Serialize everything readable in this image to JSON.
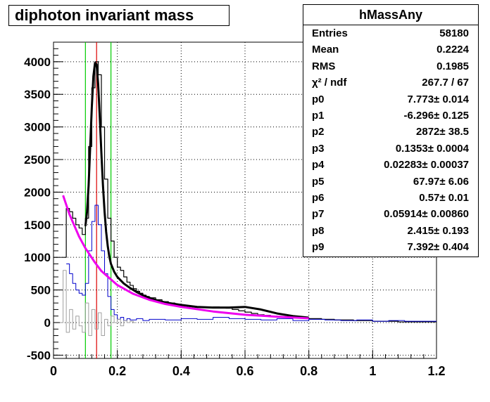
{
  "title": "diphoton invariant mass",
  "stats": {
    "name": "hMassAny",
    "rows": [
      {
        "label": "Entries",
        "value": "58180"
      },
      {
        "label": "Mean",
        "value": "0.2224"
      },
      {
        "label": "RMS",
        "value": "0.1985"
      },
      {
        "label": "χ² / ndf",
        "value": "267.7 / 67"
      },
      {
        "label": "p0",
        "value": "7.773± 0.014"
      },
      {
        "label": "p1",
        "value": "-6.296± 0.125"
      },
      {
        "label": "p2",
        "value": "2872± 38.5"
      },
      {
        "label": "p3",
        "value": "0.1353± 0.0004"
      },
      {
        "label": "p4",
        "value": "0.02283± 0.00037"
      },
      {
        "label": "p5",
        "value": "67.97± 6.06"
      },
      {
        "label": "p6",
        "value": "0.57± 0.01"
      },
      {
        "label": "p7",
        "value": "0.05914± 0.00860"
      },
      {
        "label": "p8",
        "value": "2.415± 0.193"
      },
      {
        "label": "p9",
        "value": "7.392± 0.404"
      }
    ]
  },
  "chart_data": {
    "type": "line",
    "title": "diphoton invariant mass",
    "xlabel": "",
    "ylabel": "",
    "xlim": [
      0,
      1.2
    ],
    "ylim": [
      -550,
      4300
    ],
    "xticks": [
      0,
      0.2,
      0.4,
      0.6,
      0.8,
      1,
      1.2
    ],
    "xtick_labels": [
      "0",
      "0.2",
      "0.4",
      "0.6",
      "0.8",
      "1",
      "1.2"
    ],
    "yticks": [
      -500,
      0,
      500,
      1000,
      1500,
      2000,
      2500,
      3000,
      3500,
      4000
    ],
    "ytick_labels": [
      "-500",
      "0",
      "500",
      "1000",
      "1500",
      "2000",
      "2500",
      "3000",
      "3500",
      "4000"
    ],
    "grid": true,
    "vertical_lines": [
      {
        "x": 0.1,
        "color": "#00cc00"
      },
      {
        "x": 0.135,
        "color": "#dd0000"
      },
      {
        "x": 0.18,
        "color": "#00cc00"
      }
    ],
    "series": [
      {
        "style": "step",
        "color": "#000000",
        "width": 1.2,
        "x": [
          0.03,
          0.04,
          0.05,
          0.06,
          0.07,
          0.08,
          0.09,
          0.1,
          0.11,
          0.12,
          0.13,
          0.14,
          0.15,
          0.16,
          0.17,
          0.18,
          0.19,
          0.2,
          0.21,
          0.22,
          0.23,
          0.24,
          0.25,
          0.26,
          0.27,
          0.28,
          0.29,
          0.3,
          0.32,
          0.34,
          0.36,
          0.38,
          0.4,
          0.42,
          0.44,
          0.46,
          0.48,
          0.5,
          0.52,
          0.54,
          0.56,
          0.58,
          0.6,
          0.62,
          0.64,
          0.66,
          0.68,
          0.7,
          0.72,
          0.74,
          0.76,
          0.78,
          0.8,
          0.82,
          0.84,
          0.86,
          0.88,
          0.9,
          0.92,
          0.94,
          0.96,
          0.98,
          1.0,
          1.02,
          1.04,
          1.06,
          1.08,
          1.1,
          1.12,
          1.14,
          1.16,
          1.18,
          1.2
        ],
        "y": [
          1000,
          1750,
          1700,
          1600,
          1500,
          1450,
          1350,
          1600,
          2700,
          3600,
          4000,
          3800,
          3000,
          2200,
          1600,
          1250,
          1000,
          850,
          800,
          700,
          620,
          570,
          520,
          480,
          450,
          420,
          400,
          380,
          350,
          320,
          300,
          280,
          260,
          250,
          240,
          230,
          230,
          240,
          230,
          220,
          200,
          180,
          160,
          140,
          120,
          110,
          100,
          90,
          80,
          80,
          70,
          70,
          60,
          60,
          50,
          50,
          40,
          40,
          40,
          30,
          30,
          30,
          20,
          20,
          20,
          20,
          10,
          10,
          10,
          10,
          10,
          10,
          0
        ]
      },
      {
        "style": "step",
        "color": "#0000cc",
        "width": 1,
        "x": [
          0.04,
          0.05,
          0.06,
          0.07,
          0.08,
          0.09,
          0.1,
          0.11,
          0.12,
          0.13,
          0.14,
          0.15,
          0.16,
          0.17,
          0.18,
          0.19,
          0.2,
          0.21,
          0.22,
          0.23,
          0.24,
          0.26,
          0.28,
          0.3,
          0.35,
          0.4,
          0.45,
          0.5,
          0.55,
          0.6,
          0.65,
          0.7,
          0.75,
          0.8,
          0.85,
          0.9,
          0.95,
          1.0,
          1.05,
          1.1,
          1.15,
          1.2
        ],
        "y": [
          900,
          750,
          600,
          500,
          450,
          420,
          600,
          1100,
          1550,
          1800,
          1500,
          1100,
          750,
          400,
          200,
          120,
          50,
          80,
          30,
          60,
          40,
          60,
          30,
          50,
          40,
          60,
          50,
          80,
          60,
          50,
          40,
          60,
          30,
          50,
          40,
          30,
          40,
          20,
          30,
          20,
          20,
          0
        ]
      },
      {
        "style": "step",
        "color": "#a0a0a0",
        "width": 1,
        "x": [
          0.02,
          0.03,
          0.04,
          0.05,
          0.06,
          0.07,
          0.08,
          0.09,
          0.1,
          0.11,
          0.12,
          0.13,
          0.14,
          0.15,
          0.16,
          0.17,
          0.18,
          0.19,
          0.2,
          0.21,
          0.22,
          0.23,
          0.24,
          0.25,
          0.26
        ],
        "y": [
          0,
          800,
          -150,
          200,
          -100,
          100,
          -50,
          -150,
          300,
          -200,
          200,
          -100,
          150,
          -200,
          50,
          -50,
          100,
          0,
          50,
          -50,
          30,
          0,
          20,
          0,
          0
        ]
      },
      {
        "style": "line",
        "color": "#000000",
        "width": 3,
        "x": [
          0.1,
          0.105,
          0.11,
          0.115,
          0.12,
          0.125,
          0.13,
          0.135,
          0.14,
          0.145,
          0.15,
          0.155,
          0.16,
          0.165,
          0.17,
          0.175,
          0.18,
          0.19,
          0.2,
          0.22,
          0.24,
          0.26,
          0.28,
          0.3,
          0.33,
          0.36,
          0.4,
          0.45,
          0.5,
          0.55,
          0.6,
          0.65,
          0.7,
          0.75,
          0.8
        ],
        "y": [
          1480,
          1700,
          2100,
          2700,
          3300,
          3780,
          3980,
          3960,
          3650,
          3150,
          2600,
          2100,
          1700,
          1390,
          1170,
          1010,
          900,
          780,
          700,
          600,
          530,
          470,
          420,
          380,
          330,
          300,
          270,
          240,
          230,
          230,
          240,
          200,
          140,
          100,
          75
        ]
      },
      {
        "style": "line",
        "color": "#ee00ee",
        "width": 3,
        "x": [
          0.03,
          0.05,
          0.08,
          0.1,
          0.13,
          0.15,
          0.2,
          0.25,
          0.3,
          0.35,
          0.4,
          0.5,
          0.6,
          0.7,
          0.8
        ],
        "y": [
          1950,
          1660,
          1320,
          1140,
          920,
          790,
          575,
          440,
          350,
          285,
          240,
          170,
          120,
          90,
          65
        ]
      }
    ]
  }
}
